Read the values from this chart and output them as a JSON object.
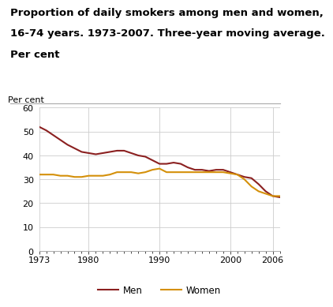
{
  "title_line1": "Proportion of daily smokers among men and women,",
  "title_line2": "16-74 years. 1973-2007. Three-year moving average.",
  "title_line3": "Per cent",
  "ylabel": "Per cent",
  "men_years": [
    1973,
    1974,
    1975,
    1976,
    1977,
    1978,
    1979,
    1980,
    1981,
    1982,
    1983,
    1984,
    1985,
    1986,
    1987,
    1988,
    1989,
    1990,
    1991,
    1992,
    1993,
    1994,
    1995,
    1996,
    1997,
    1998,
    1999,
    2000,
    2001,
    2002,
    2003,
    2004,
    2005,
    2006,
    2007
  ],
  "men_values": [
    52,
    50.5,
    48.5,
    46.5,
    44.5,
    43,
    41.5,
    41,
    40.5,
    41,
    41.5,
    42,
    42,
    41,
    40,
    39.5,
    38,
    36.5,
    36.5,
    37,
    36.5,
    35,
    34,
    34,
    33.5,
    34,
    34,
    33,
    32,
    31,
    30.5,
    28,
    25,
    23,
    22.5
  ],
  "women_years": [
    1973,
    1974,
    1975,
    1976,
    1977,
    1978,
    1979,
    1980,
    1981,
    1982,
    1983,
    1984,
    1985,
    1986,
    1987,
    1988,
    1989,
    1990,
    1991,
    1992,
    1993,
    1994,
    1995,
    1996,
    1997,
    1998,
    1999,
    2000,
    2001,
    2002,
    2003,
    2004,
    2005,
    2006,
    2007
  ],
  "women_values": [
    32,
    32,
    32,
    31.5,
    31.5,
    31,
    31,
    31.5,
    31.5,
    31.5,
    32,
    33,
    33,
    33,
    32.5,
    33,
    34,
    34.5,
    33,
    33,
    33,
    33,
    33,
    33,
    33,
    33,
    33,
    32.5,
    32,
    30,
    27,
    25,
    24,
    23,
    23
  ],
  "men_color": "#8B2020",
  "women_color": "#D4900A",
  "xlim": [
    1973,
    2007
  ],
  "ylim": [
    0,
    60
  ],
  "xticks": [
    1973,
    1980,
    1990,
    2000,
    2006
  ],
  "yticks": [
    0,
    10,
    20,
    30,
    40,
    50,
    60
  ],
  "legend_labels": [
    "Men",
    "Women"
  ],
  "grid_color": "#cccccc",
  "line_width": 1.5,
  "bg_color": "#ffffff",
  "title_fontsize": 9.5,
  "axis_fontsize": 8,
  "legend_fontsize": 8.5,
  "separator_color": "#aaaaaa"
}
